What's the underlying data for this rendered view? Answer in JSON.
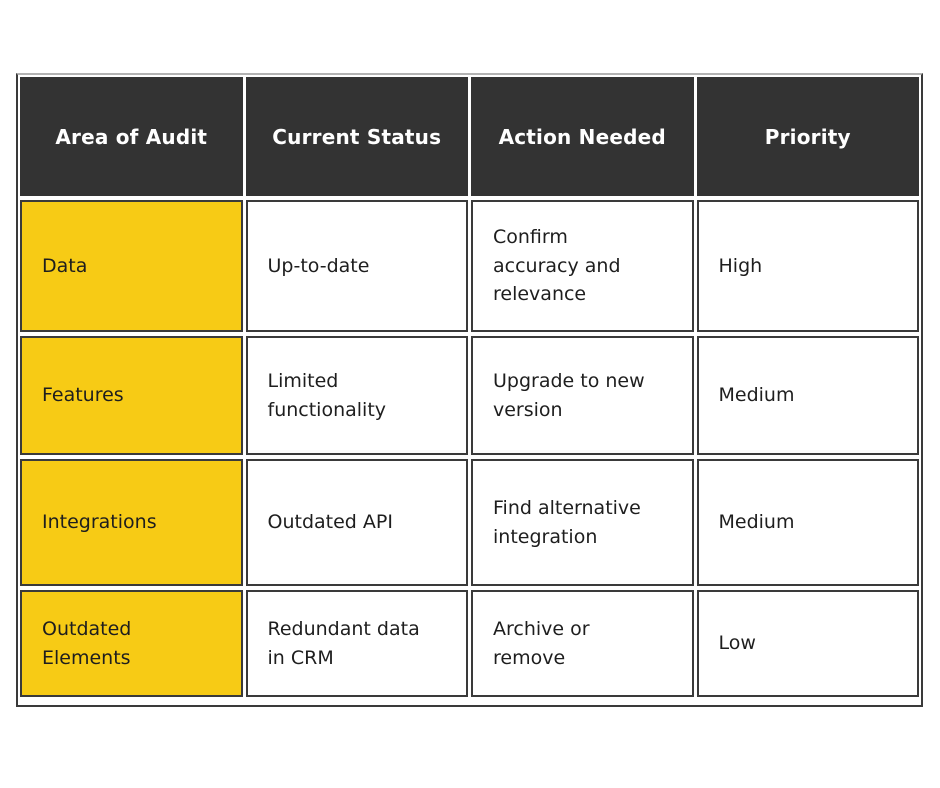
{
  "table": {
    "title_semantic": "website-audit-table",
    "columns": {
      "area": "Area of Audit",
      "status": "Current Status",
      "action": "Action Needed",
      "priority": "Priority"
    },
    "rows": [
      {
        "area": "Data",
        "status": "Up-to-date",
        "action": "Confirm\naccuracy and\nrelevance",
        "priority": "High"
      },
      {
        "area": "Features",
        "status": "Limited\nfunctionality",
        "action": "Upgrade to new\nversion",
        "priority": "Medium"
      },
      {
        "area": "Integrations",
        "status": "Outdated API",
        "action": "Find alternative\nintegration",
        "priority": "Medium"
      },
      {
        "area": "Outdated\nElements",
        "status": "Redundant data\nin CRM",
        "action": "Archive or\nremove",
        "priority": "Low"
      }
    ],
    "colors": {
      "header_bg": "#333333",
      "header_text": "#ffffff",
      "area_cell_bg": "#f7cb15",
      "cell_bg": "#ffffff",
      "cell_border": "#3a3a3a",
      "body_text": "#1e1e1e"
    }
  }
}
